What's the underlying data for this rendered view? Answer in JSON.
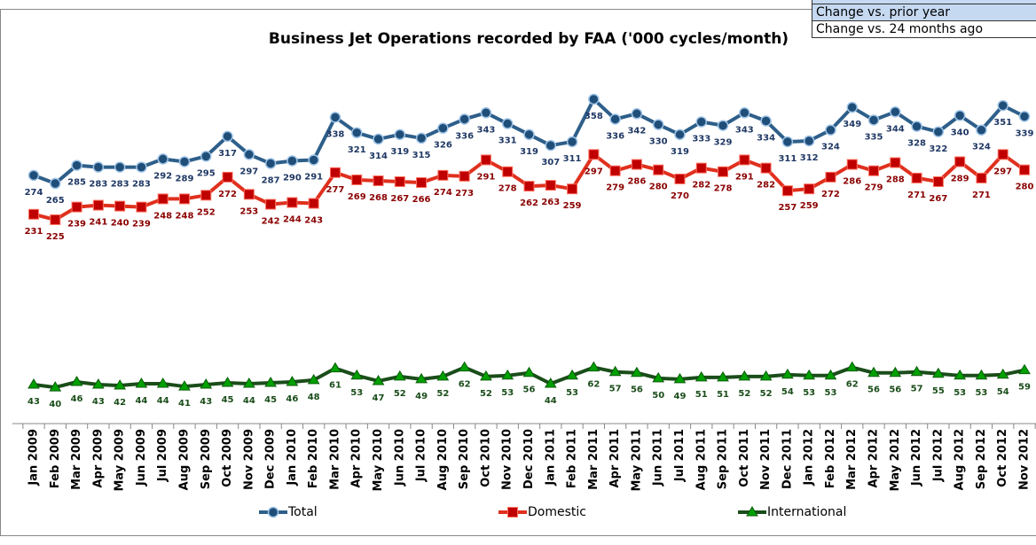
{
  "chart_data": {
    "type": "line",
    "title": "Business Jet Operations recorded by FAA ('000 cycles/month)",
    "categories": [
      "Jan 2009",
      "Feb 2009",
      "Mar 2009",
      "Apr 2009",
      "May 2009",
      "Jun 2009",
      "Jul 2009",
      "Aug 2009",
      "Sep 2009",
      "Oct 2009",
      "Nov 2009",
      "Dec 2009",
      "Jan 2010",
      "Feb 2010",
      "Mar 2010",
      "Apr 2010",
      "May 2010",
      "Jun 2010",
      "Jul 2010",
      "Aug 2010",
      "Sep 2010",
      "Oct 2010",
      "Nov 2010",
      "Dec 2010",
      "Jan 2011",
      "Feb 2011",
      "Mar 2011",
      "Apr 2011",
      "May 2011",
      "Jun 2011",
      "Jul 2011",
      "Aug 2011",
      "Sep 2011",
      "Oct 2011",
      "Nov 2011",
      "Dec 2011",
      "Jan 2012",
      "Feb 2012",
      "Mar 2012",
      "Apr 2012",
      "May 2012",
      "Jun 2012",
      "Jul 2012",
      "Aug 2012",
      "Sep 2012",
      "Oct 2012",
      "Nov 2012"
    ],
    "series": [
      {
        "name": "Total",
        "color": "#2e5f8a",
        "marker": "circle",
        "label_color": "#1f3864",
        "values": [
          274,
          265,
          285,
          283,
          283,
          283,
          292,
          289,
          295,
          317,
          297,
          287,
          290,
          291,
          338,
          321,
          314,
          319,
          315,
          326,
          336,
          343,
          331,
          319,
          307,
          311,
          358,
          336,
          342,
          330,
          319,
          333,
          329,
          343,
          334,
          311,
          312,
          324,
          349,
          335,
          344,
          328,
          322,
          340,
          324,
          351,
          339
        ]
      },
      {
        "name": "Domestic",
        "color": "#e0301e",
        "marker": "square",
        "label_color": "#8b0000",
        "values": [
          231,
          225,
          239,
          241,
          240,
          239,
          248,
          248,
          252,
          272,
          253,
          242,
          244,
          243,
          277,
          269,
          268,
          267,
          266,
          274,
          273,
          291,
          278,
          262,
          263,
          259,
          297,
          279,
          286,
          280,
          270,
          282,
          278,
          291,
          282,
          257,
          259,
          272,
          286,
          279,
          288,
          271,
          267,
          289,
          271,
          297,
          280
        ]
      },
      {
        "name": "International",
        "color": "#1a4d1a",
        "marker": "triangle",
        "label_color": "#1a4d1a",
        "values": [
          43,
          40,
          46,
          43,
          42,
          44,
          44,
          41,
          43,
          45,
          44,
          45,
          46,
          48,
          61,
          53,
          47,
          52,
          49,
          52,
          62,
          52,
          53,
          56,
          44,
          53,
          62,
          57,
          56,
          50,
          49,
          51,
          51,
          52,
          52,
          54,
          53,
          53,
          62,
          56,
          56,
          57,
          55,
          53,
          53,
          54,
          59
        ]
      }
    ],
    "ylim": [
      0,
      400
    ],
    "legend": "bottom"
  },
  "overlay": {
    "rows": [
      "Change vs. prior year",
      "Change vs. 24 months ago"
    ]
  }
}
